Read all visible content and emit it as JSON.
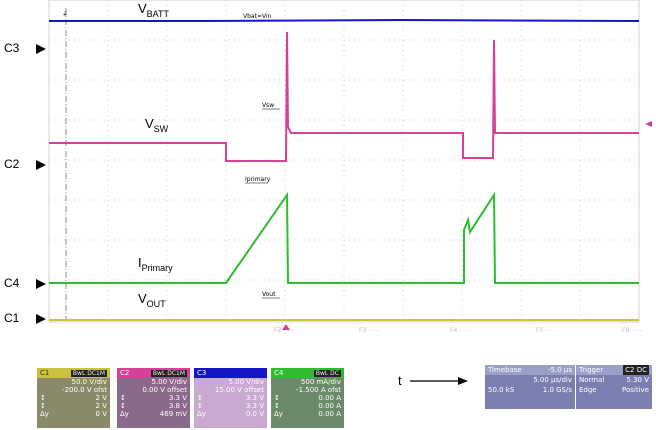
{
  "labels": {
    "vbatt": {
      "main": "V",
      "sub": "BATT"
    },
    "vsw": {
      "main": "V",
      "sub": "SW"
    },
    "iprimary": {
      "main": "I",
      "sub": "Primary"
    },
    "vout": {
      "main": "V",
      "sub": "OUT"
    }
  },
  "annotations": {
    "vbat_vin": "Vbat=Vin",
    "vsw": "Vsw",
    "iprimary": "Iprimary",
    "vout": "Vout"
  },
  "markers": {
    "c3": "C3",
    "c2": "C2",
    "c4": "C4",
    "c1": "C1"
  },
  "bottom_ticks": [
    "F2 - - -",
    "F3 - - -",
    "F4 - - -",
    "F5 - - -",
    "F6 - - -"
  ],
  "t_label": "t",
  "channels": [
    {
      "name": "C1",
      "tag": "BwL DC1M",
      "color": "#c9c23c",
      "scale": "50.0 V/div",
      "offset": "-200.0 V ofst",
      "r1": "2 V",
      "r2": "2 V",
      "r3": "0 V"
    },
    {
      "name": "C2",
      "tag": "BwL DC1M",
      "color": "#d6409a",
      "scale": "5.00 V/div",
      "offset": "0.00 V offset",
      "r1": "3.3 V",
      "r2": "3.8 V",
      "r3": "469 mV"
    },
    {
      "name": "C3",
      "tag": "",
      "color": "#1515c8",
      "scale": "5.00 V/div",
      "offset": "15.00 V offset",
      "r1": "3.3 V",
      "r2": "3.3 V",
      "r3": "0.0 V"
    },
    {
      "name": "C4",
      "tag": "BwL DC",
      "color": "#2ebd2e",
      "scale": "500 mA/div",
      "offset": "-1.500 A ofst",
      "r1": "0.00 A",
      "r2": "0.00 A",
      "r3": "0.00 A"
    }
  ],
  "timebase": {
    "title": "Timebase",
    "delay": "-5.0 µs",
    "div": "5.00 µs/div",
    "samples": "50.0 kS",
    "rate": "1.0 GS/s"
  },
  "trigger": {
    "title": "Trigger",
    "tag": "C2 DC",
    "mode": "Normal",
    "level": "5.30 V",
    "type": "Edge",
    "slope": "Positive"
  },
  "colors": {
    "c1": "#c9c23c",
    "c2": "#d6409a",
    "c3": "#1515c8",
    "c4": "#2ebd2e",
    "grid": "#bdbdbd",
    "bg": "#ffffff"
  }
}
